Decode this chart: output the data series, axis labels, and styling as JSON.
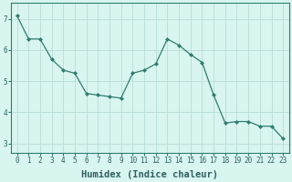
{
  "x": [
    0,
    1,
    2,
    3,
    4,
    5,
    6,
    7,
    8,
    9,
    10,
    11,
    12,
    13,
    14,
    15,
    16,
    17,
    18,
    19,
    20,
    21,
    22,
    23
  ],
  "y": [
    7.1,
    6.35,
    6.35,
    5.7,
    5.35,
    5.25,
    4.6,
    4.55,
    4.5,
    4.45,
    5.25,
    5.35,
    5.55,
    6.35,
    6.15,
    5.85,
    5.6,
    4.55,
    3.65,
    3.7,
    3.7,
    3.55,
    3.55,
    3.15
  ],
  "line_color": "#2e7d6e",
  "marker": "D",
  "marker_size": 2.0,
  "bg_color": "#d9f5f0",
  "grid_color": "#b8ddd8",
  "xlabel": "Humidex (Indice chaleur)",
  "xlim": [
    -0.5,
    23.5
  ],
  "ylim": [
    2.7,
    7.5
  ],
  "yticks": [
    3,
    4,
    5,
    6,
    7
  ],
  "xticks": [
    0,
    1,
    2,
    3,
    4,
    5,
    6,
    7,
    8,
    9,
    10,
    11,
    12,
    13,
    14,
    15,
    16,
    17,
    18,
    19,
    20,
    21,
    22,
    23
  ],
  "tick_fontsize": 5.5,
  "xlabel_fontsize": 7.5,
  "linewidth": 0.9
}
